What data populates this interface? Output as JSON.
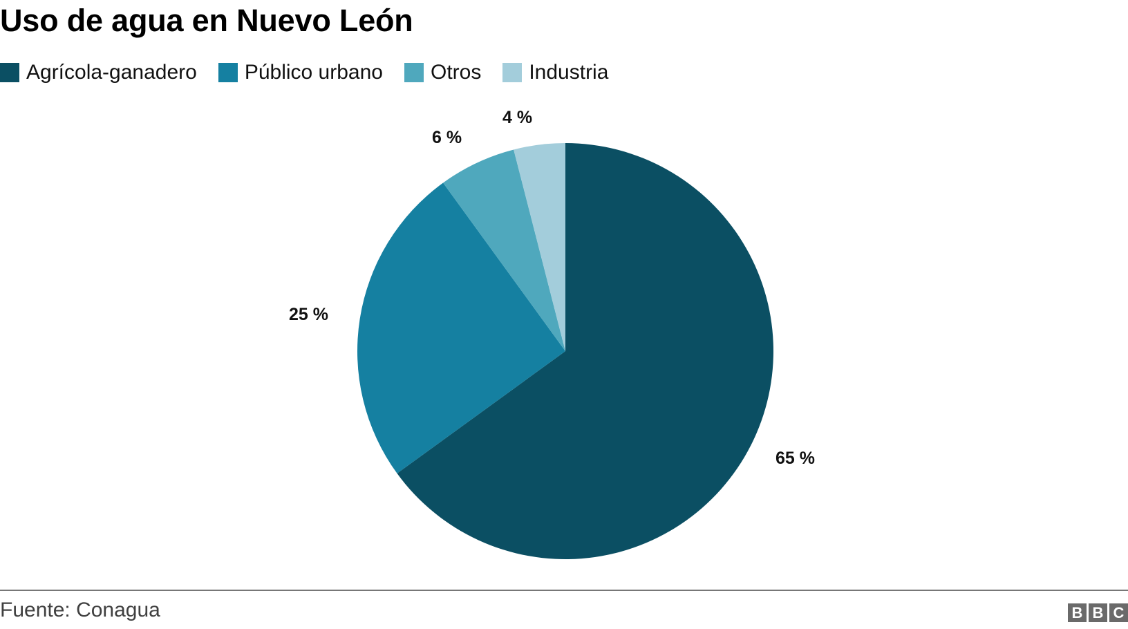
{
  "title": "Uso de agua en Nuevo León",
  "legend": [
    {
      "label": "Agrícola-ganadero",
      "color": "#0b4f63"
    },
    {
      "label": "Público urbano",
      "color": "#1580a1"
    },
    {
      "label": "Otros",
      "color": "#4fa8bd"
    },
    {
      "label": "Industria",
      "color": "#a3cddb"
    }
  ],
  "slice_labels": {
    "agricola": "65 %",
    "publico": "25 %",
    "otros": "6 %",
    "industria": "4 %"
  },
  "footer": {
    "source": "Fuente: Conagua",
    "logo": [
      "B",
      "B",
      "C"
    ]
  },
  "chart_data": {
    "type": "pie",
    "title": "Uso de agua en Nuevo León",
    "categories": [
      "Agrícola-ganadero",
      "Público urbano",
      "Otros",
      "Industria"
    ],
    "values": [
      65,
      25,
      6,
      4
    ],
    "unit": "%",
    "colors": [
      "#0b4f63",
      "#1580a1",
      "#4fa8bd",
      "#a3cddb"
    ],
    "data_labels": [
      "65 %",
      "25 %",
      "6 %",
      "4 %"
    ],
    "start_angle": "12 o'clock",
    "direction": "clockwise",
    "legend_position": "top-left",
    "source": "Fuente: Conagua"
  }
}
